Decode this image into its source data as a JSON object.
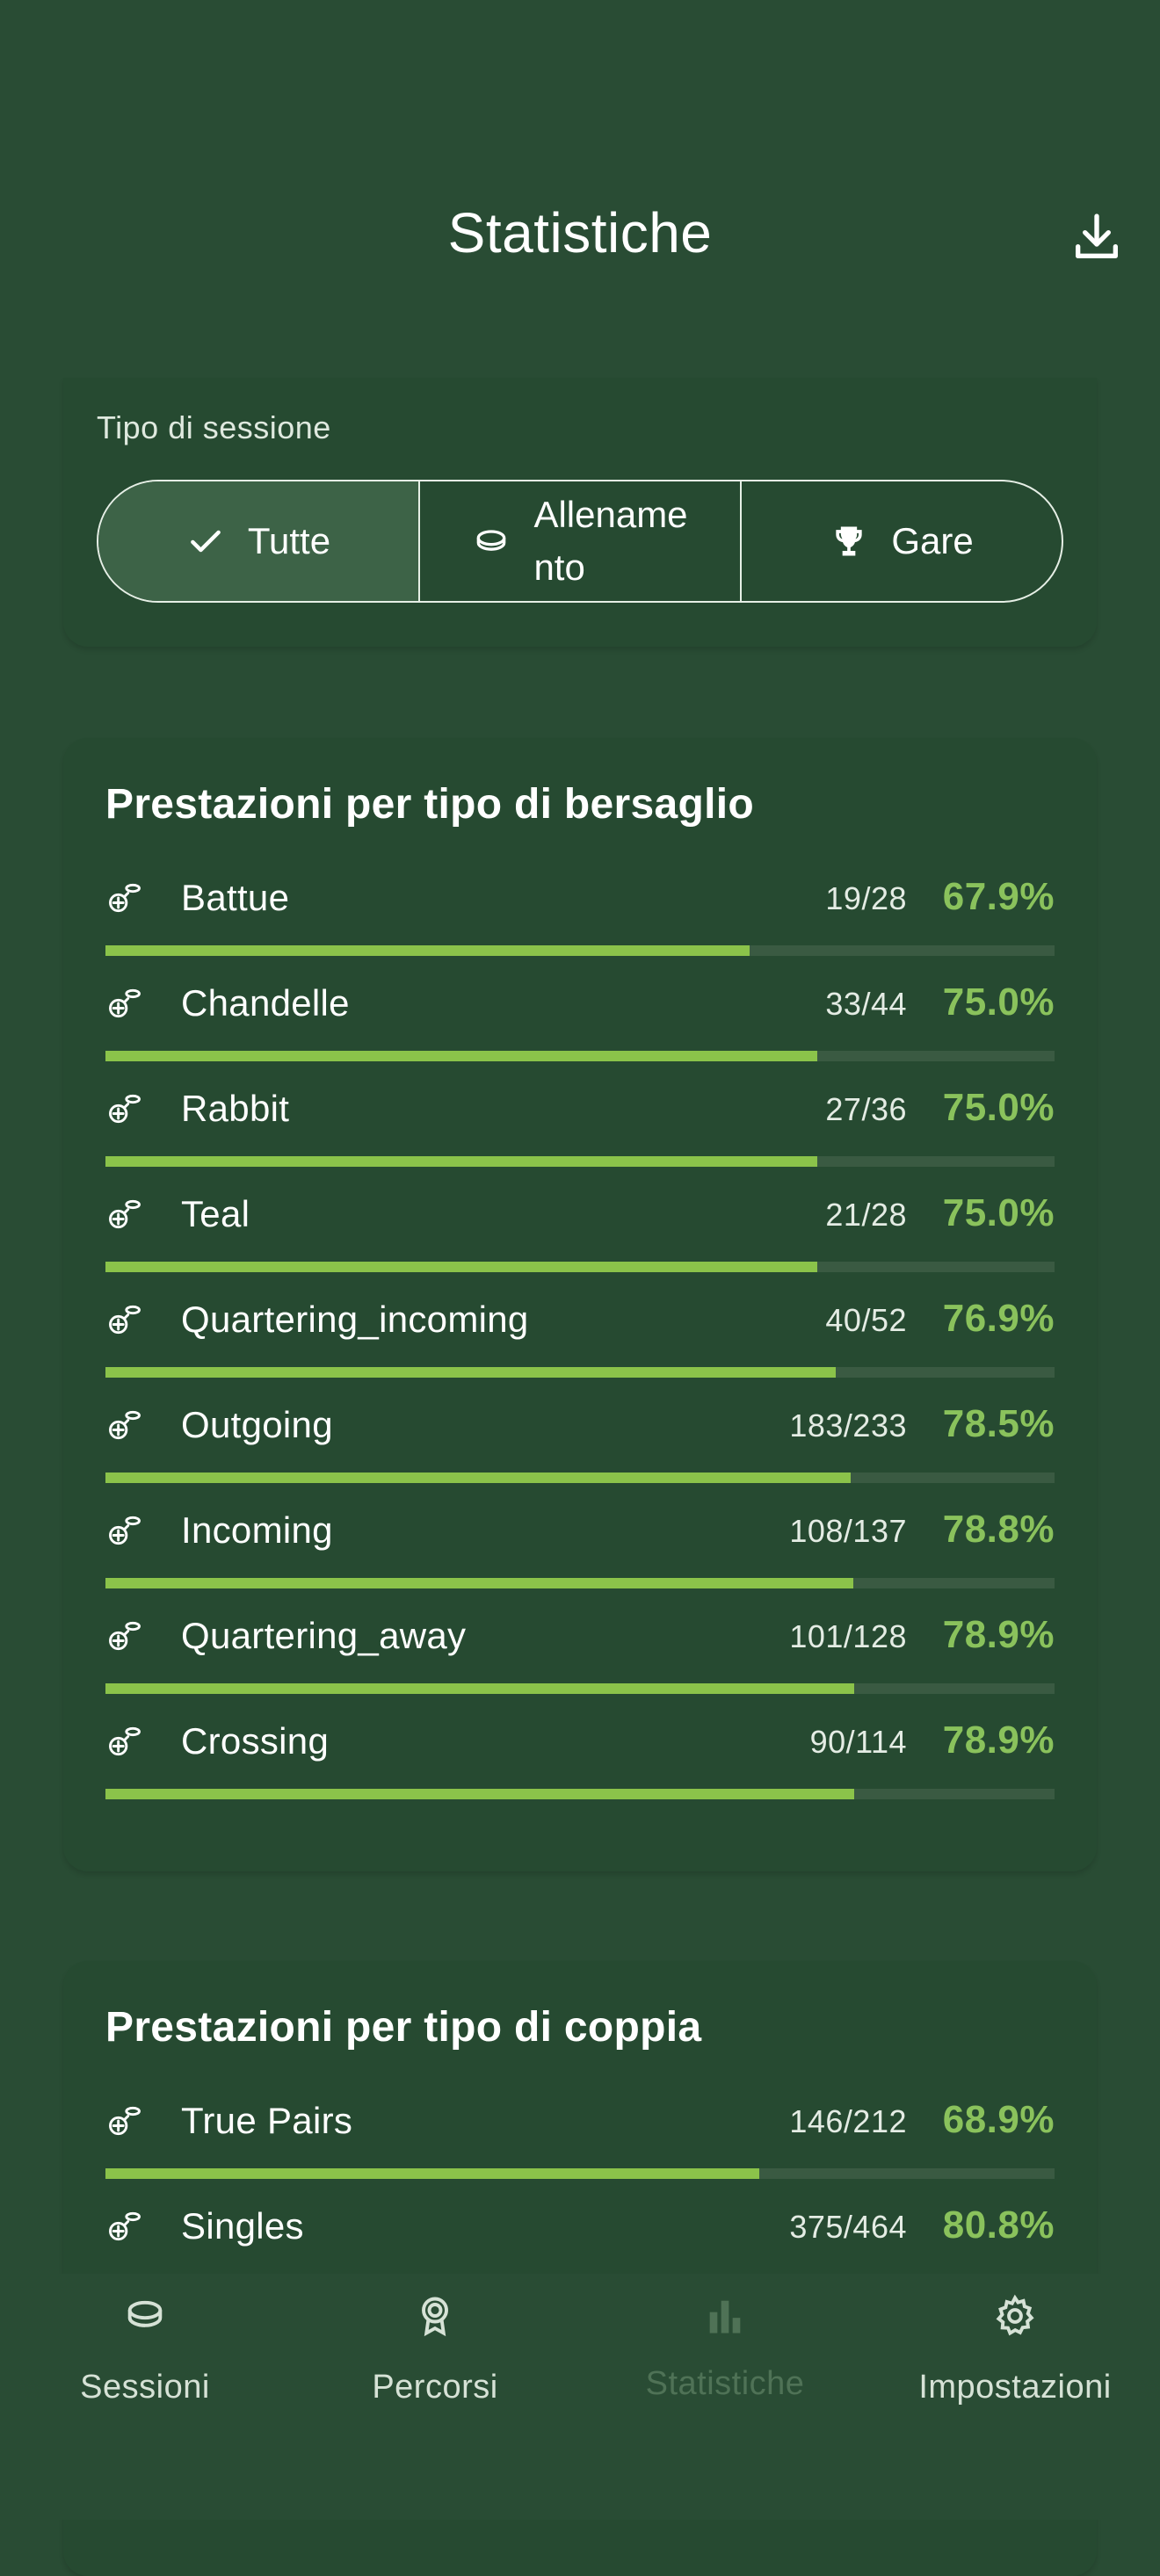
{
  "header": {
    "title": "Statistiche",
    "download_icon": "download-icon"
  },
  "filter": {
    "label": "Tipo di sessione",
    "options": [
      {
        "label": "Tutte",
        "icon": "check-icon",
        "selected": true
      },
      {
        "label_line1": "Allename",
        "label_line2": "nto",
        "icon": "clay-target-icon",
        "selected": false
      },
      {
        "label": "Gare",
        "icon": "trophy-icon",
        "selected": false
      }
    ]
  },
  "bersaglio": {
    "title": "Prestazioni per tipo di bersaglio",
    "rows": [
      {
        "label": "Battue",
        "count": "19/28",
        "pct": "67.9%",
        "value": 0.679,
        "icon": "battue-icon"
      },
      {
        "label": "Chandelle",
        "count": "33/44",
        "pct": "75.0%",
        "value": 0.75,
        "icon": "chandelle-icon"
      },
      {
        "label": "Rabbit",
        "count": "27/36",
        "pct": "75.0%",
        "value": 0.75,
        "icon": "rabbit-icon"
      },
      {
        "label": "Teal",
        "count": "21/28",
        "pct": "75.0%",
        "value": 0.75,
        "icon": "teal-icon"
      },
      {
        "label": "Quartering_incoming",
        "count": "40/52",
        "pct": "76.9%",
        "value": 0.769,
        "icon": "quartering-incoming-icon"
      },
      {
        "label": "Outgoing",
        "count": "183/233",
        "pct": "78.5%",
        "value": 0.785,
        "icon": "outgoing-icon"
      },
      {
        "label": "Incoming",
        "count": "108/137",
        "pct": "78.8%",
        "value": 0.788,
        "icon": "incoming-icon"
      },
      {
        "label": "Quartering_away",
        "count": "101/128",
        "pct": "78.9%",
        "value": 0.789,
        "icon": "quartering-away-icon"
      },
      {
        "label": "Crossing",
        "count": "90/114",
        "pct": "78.9%",
        "value": 0.789,
        "icon": "crossing-icon"
      }
    ]
  },
  "coppia": {
    "title": "Prestazioni per tipo di coppia",
    "rows": [
      {
        "label": "True Pairs",
        "count": "146/212",
        "pct": "68.9%",
        "value": 0.689,
        "icon": "true-pairs-icon"
      },
      {
        "label": "Singles",
        "count": "375/464",
        "pct": "80.8%",
        "value": 0.808,
        "icon": "singles-icon"
      }
    ]
  },
  "nav": {
    "items": [
      {
        "label": "Sessioni",
        "icon": "clay-target-icon",
        "active": false
      },
      {
        "label": "Percorsi",
        "icon": "award-icon",
        "active": false
      },
      {
        "label": "Statistiche",
        "icon": "bar-chart-icon",
        "active": true
      },
      {
        "label": "Impostazioni",
        "icon": "gear-icon",
        "active": false
      }
    ]
  },
  "colors": {
    "background": "#294c34",
    "card": "#264a31",
    "accent": "#8bc34a",
    "track": "#3a5a42"
  }
}
